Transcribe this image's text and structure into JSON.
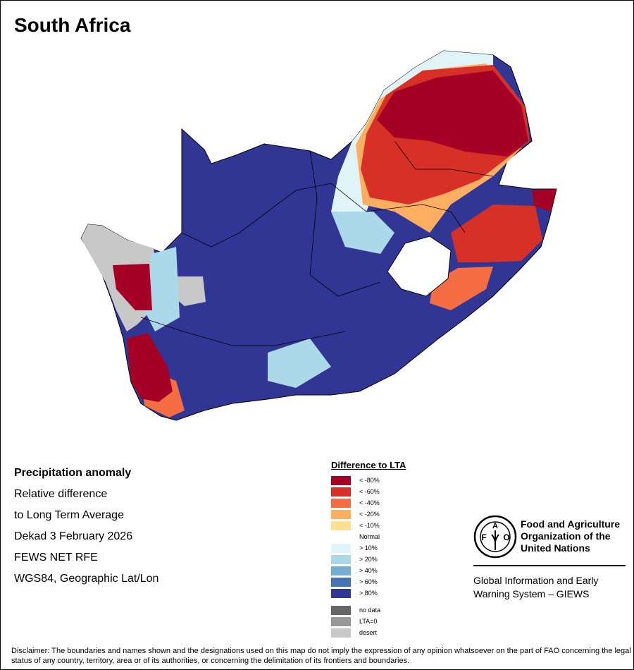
{
  "title": "South Africa",
  "info": {
    "heading": "Precipitation anomaly",
    "lines": [
      "Relative difference",
      "to Long Term Average",
      "Dekad 3 February 2026",
      "FEWS NET RFE",
      "WGS84, Geographic Lat/Lon"
    ]
  },
  "legend": {
    "title": "Difference to LTA",
    "items": [
      {
        "label": "< -80%",
        "color": "#a50026"
      },
      {
        "label": "< -60%",
        "color": "#d73027"
      },
      {
        "label": "< -40%",
        "color": "#f46d43"
      },
      {
        "label": "< -20%",
        "color": "#fdae61"
      },
      {
        "label": "< -10%",
        "color": "#fee090"
      },
      {
        "label": "Normal",
        "color": "#ffffff"
      },
      {
        "label": "> 10%",
        "color": "#e0f3f8"
      },
      {
        "label": "> 20%",
        "color": "#abd9e9"
      },
      {
        "label": "> 40%",
        "color": "#74add1"
      },
      {
        "label": "> 60%",
        "color": "#4575b4"
      },
      {
        "label": "> 80%",
        "color": "#313695"
      }
    ],
    "extra": [
      {
        "label": "no data",
        "color": "#666666"
      },
      {
        "label": "LTA=0",
        "color": "#999999"
      },
      {
        "label": "desert",
        "color": "#c8c8c8"
      }
    ]
  },
  "logo": {
    "org_lines": [
      "Food and Agriculture",
      "Organization of the",
      "United Nations"
    ],
    "giews_lines": [
      "Global Information and Early",
      "Warning System – GIEWS"
    ],
    "emblem": "FAO FIAT PANIS"
  },
  "disclaimer": "Disclaimer: The boundaries and names shown and the designations used on this map do not imply the expression of any opinion whatsoever on the part of FAO concerning the legal status of any country, territory, area or of its authorities, or concerning the delimitation of its frontiers and boundaries."
}
